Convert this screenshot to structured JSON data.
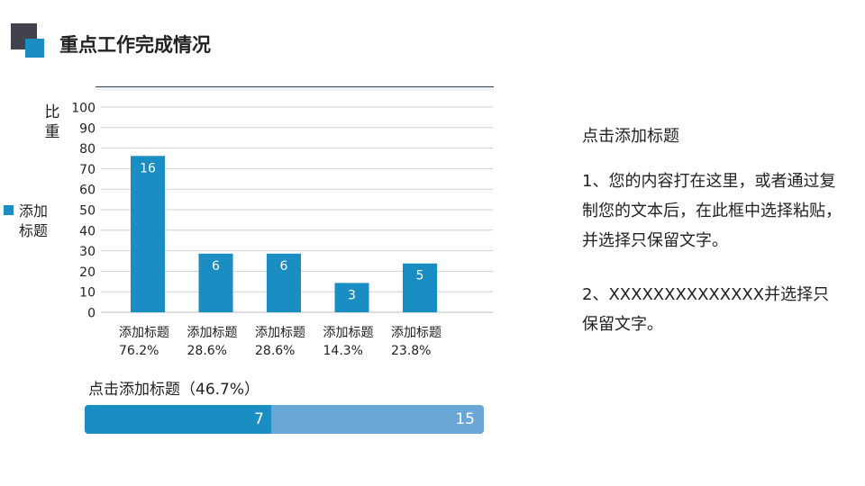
{
  "header": {
    "title": "重点工作完成情况"
  },
  "colors": {
    "bar": "#1a8ec2",
    "grid": "#d0d0d0",
    "progress_done": "#1a8ec2",
    "progress_total": "#6aa6d6",
    "logo_dark": "#41424e"
  },
  "chart_data": {
    "type": "bar",
    "categories": [
      "添加标题",
      "添加标题",
      "添加标题",
      "添加标题",
      "添加标题"
    ],
    "percent_labels": [
      "76.2%",
      "28.6%",
      "28.6%",
      "14.3%",
      "23.8%"
    ],
    "values": [
      76.2,
      28.6,
      28.6,
      14.3,
      23.8
    ],
    "data_labels": [
      "16",
      "6",
      "6",
      "3",
      "5"
    ],
    "ylabel": "比重",
    "ylim": [
      0,
      100
    ],
    "yticks": [
      0,
      10,
      20,
      30,
      40,
      50,
      60,
      70,
      80,
      90,
      100
    ],
    "grid": true,
    "legend": {
      "position": "left",
      "entries": [
        {
          "name": "添加标题"
        }
      ]
    }
  },
  "progress": {
    "label": "点击添加标题（46.7%）",
    "done": "7",
    "total": "15",
    "fraction": 0.467
  },
  "panel": {
    "title": "点击添加标题",
    "para1": "1、您的内容打在这里，或者通过复制您的文本后，在此框中选择粘贴，并选择只保留文字。",
    "para2": "2、XXXXXXXXXXXXXX并选择只保留文字。"
  }
}
